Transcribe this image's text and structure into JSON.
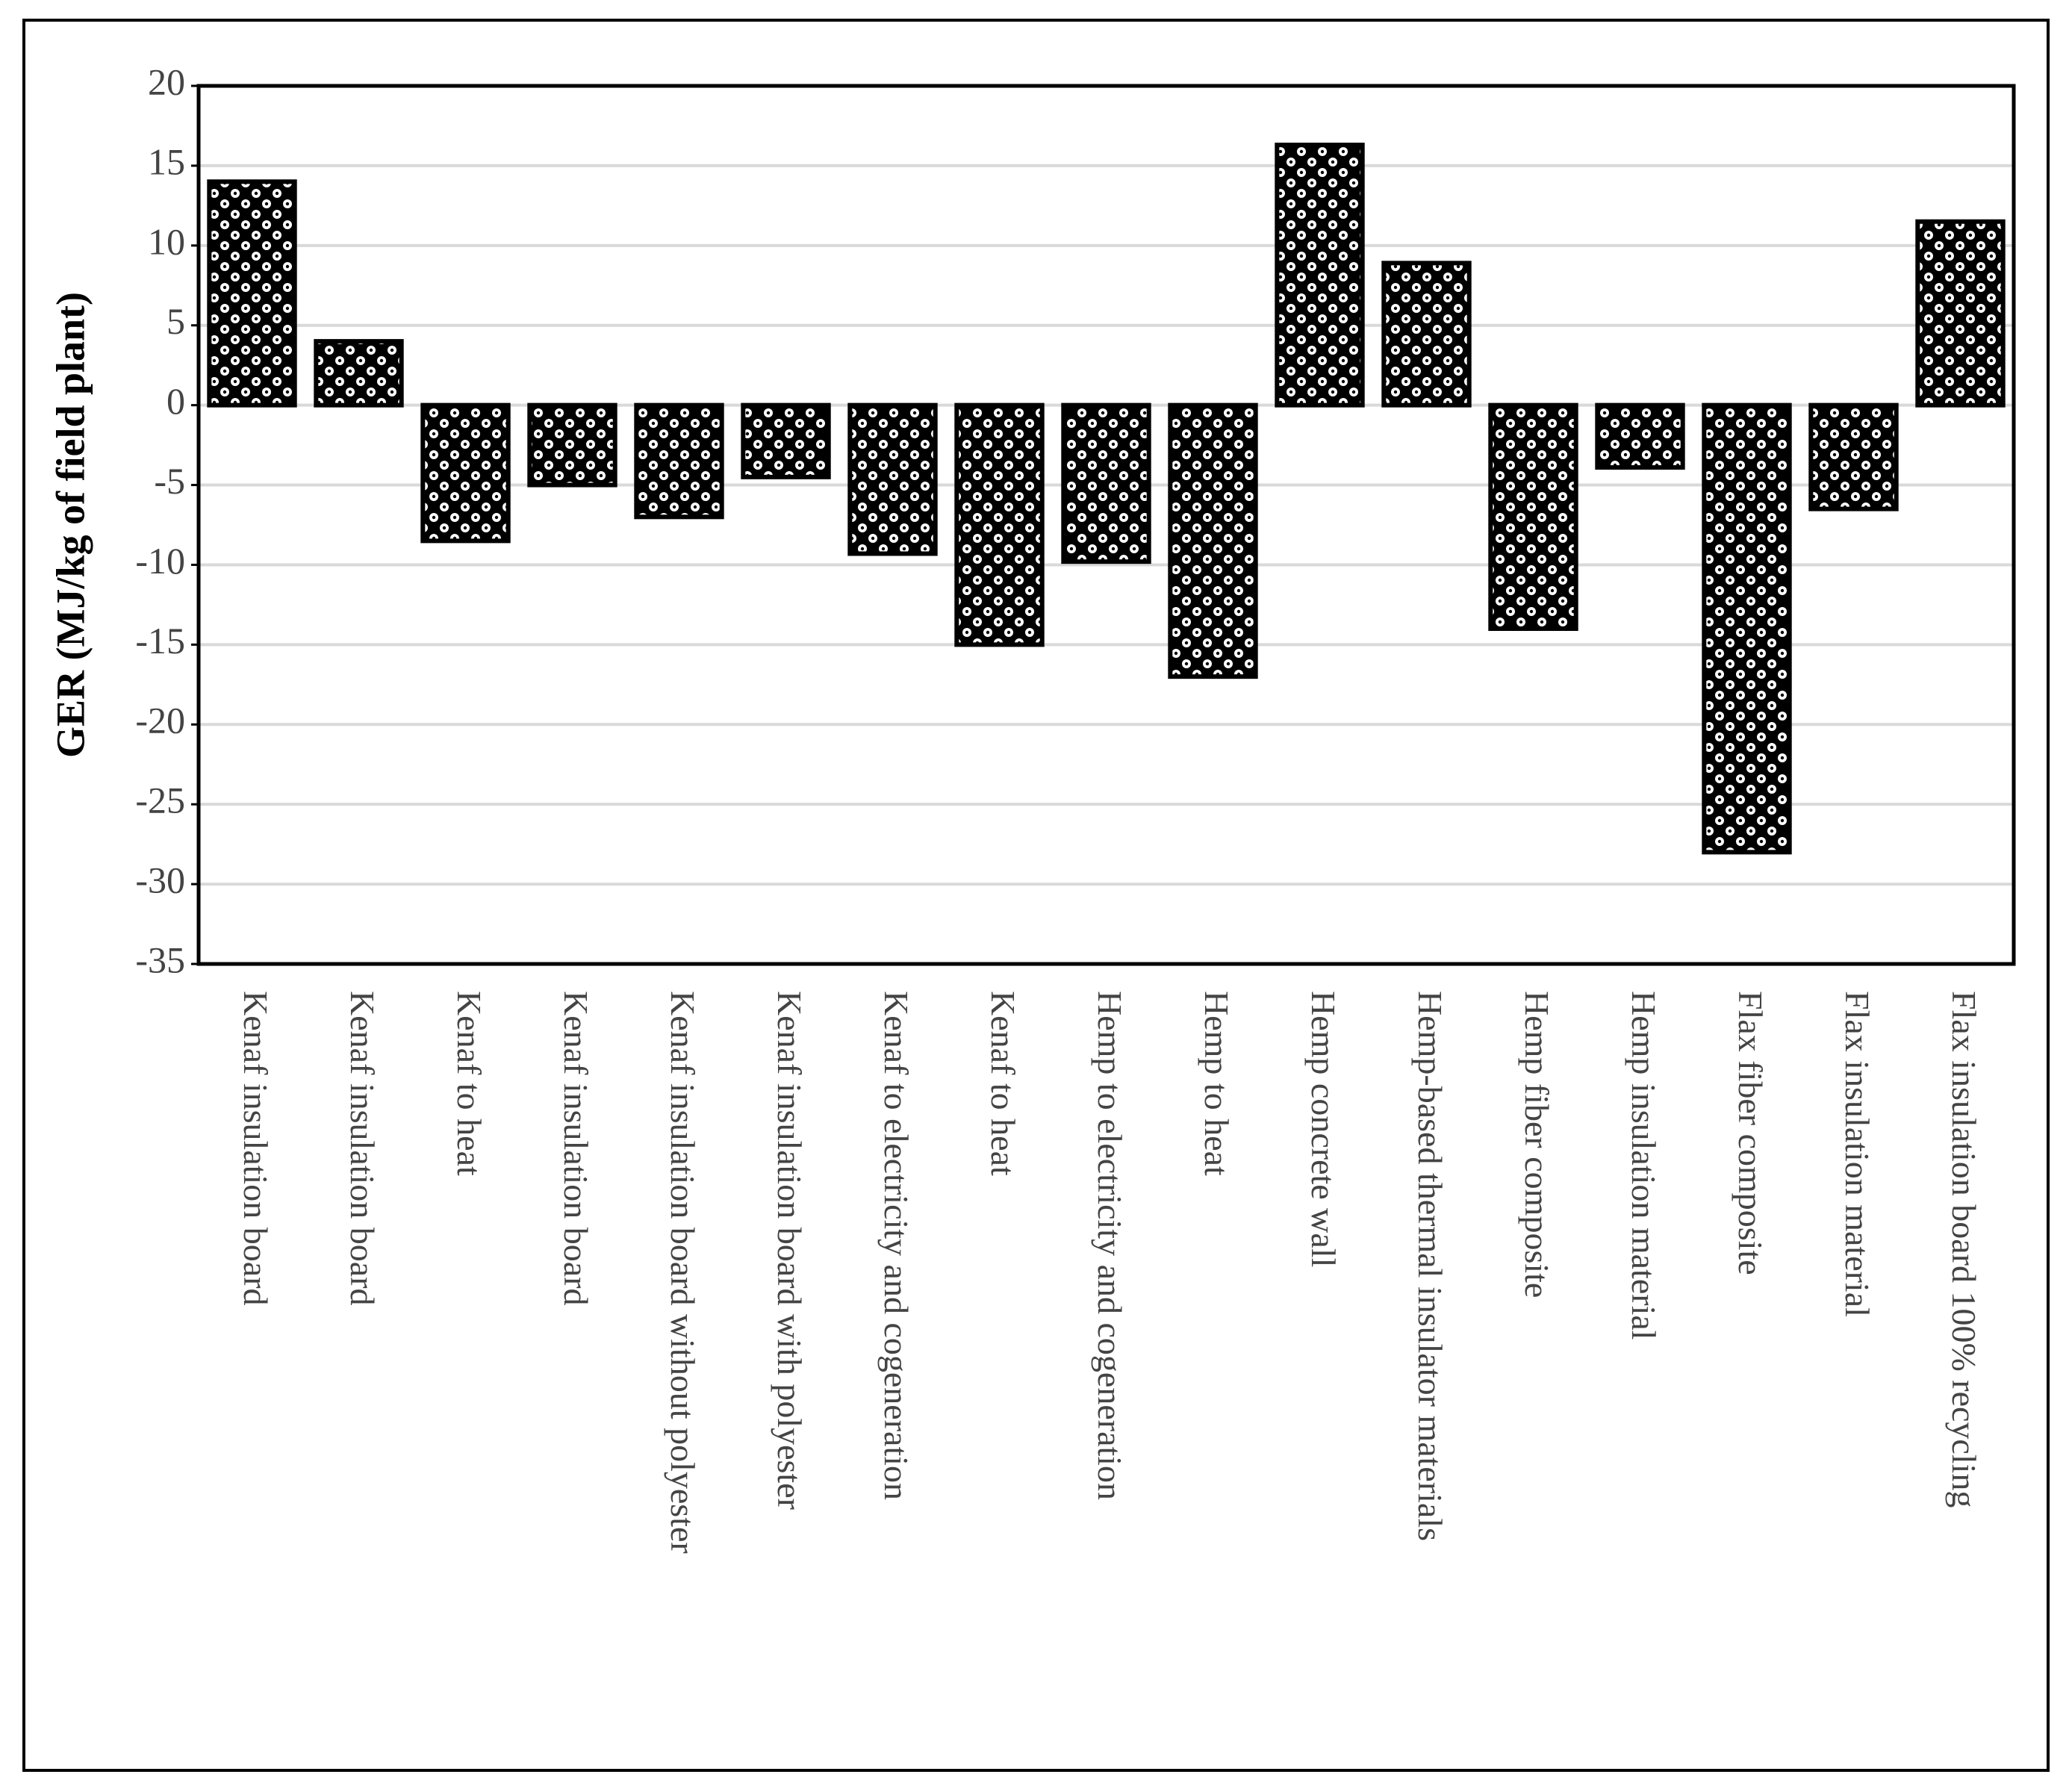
{
  "chart_data": {
    "type": "bar",
    "y_label": "GER (MJ/kg of field plant)",
    "categories": [
      "Kenaf insulation board",
      "Kenaf insulation board",
      "Kenaf to heat",
      "Kenaf insulation board",
      "Kenaf insulation board without polyester",
      "Kenaf insulation board with polyester",
      "Kenaf to electricity and cogeneration",
      "Kenaf to heat",
      "Hemp to electricity and cogeneration",
      "Hemp to heat",
      "Hemp concrete wall",
      "Hemp-based thermal insulator materials",
      "Hemp fiber composite",
      "Hemp insulation material",
      "Flax fiber composite",
      "Flax insulation material",
      "Flax insulation board 100% recycling"
    ],
    "values": [
      14,
      4,
      -8.5,
      -5,
      -7,
      -4.5,
      -9.3,
      -15,
      -9.8,
      -17,
      16.3,
      8.9,
      -14,
      -3.9,
      -28,
      -6.5,
      11.5
    ],
    "color": "#000000",
    "ylim": [
      -35,
      20
    ],
    "yticks": [
      -35,
      -30,
      -25,
      -20,
      -15,
      -10,
      -5,
      0,
      5,
      10,
      15,
      20
    ],
    "grid": true
  }
}
